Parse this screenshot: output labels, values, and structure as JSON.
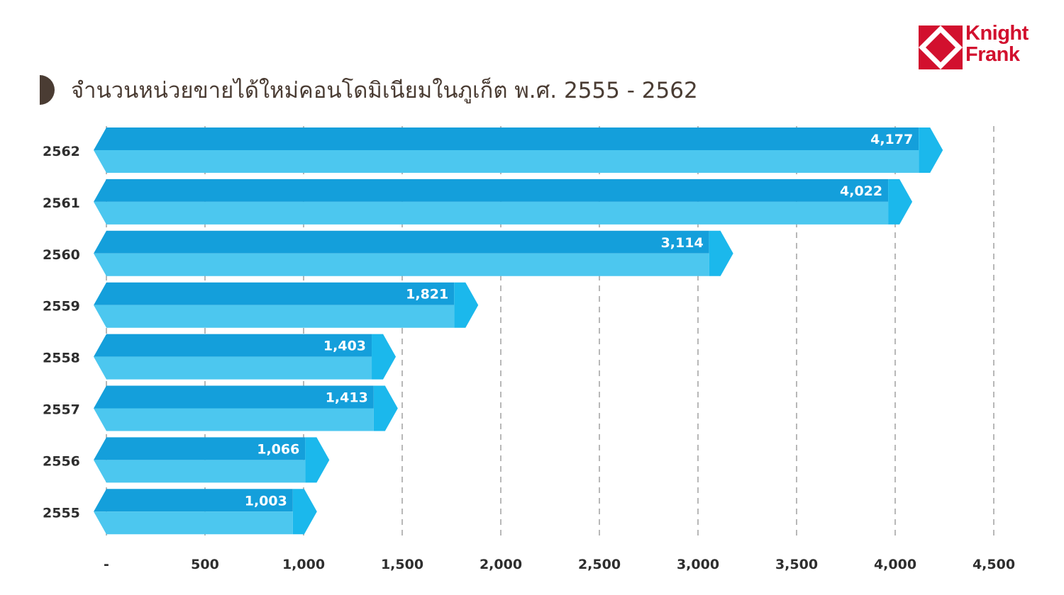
{
  "title": "จำนวนหน่วยขายได้ใหม่คอนโดมิเนียมในภูเก็ต พ.ศ. 2555 - 2562",
  "logo": {
    "line1": "Knight",
    "line2": "Frank",
    "color": "#d2102e"
  },
  "colors": {
    "bar_top": "#149fdb",
    "bar_bottom": "#4cc7ef",
    "bar_tip": "#1bb8ec",
    "title_mark": "#4a3c33",
    "grid": "#9a9a9a"
  },
  "chart_data": {
    "type": "bar",
    "orientation": "horizontal",
    "title": "จำนวนหน่วยขายได้ใหม่คอนโดมิเนียมในภูเก็ต พ.ศ. 2555 - 2562",
    "categories": [
      "2562",
      "2561",
      "2560",
      "2559",
      "2558",
      "2557",
      "2556",
      "2555"
    ],
    "values": [
      4177,
      4022,
      3114,
      1821,
      1403,
      1413,
      1066,
      1003
    ],
    "value_labels": [
      "4,177",
      "4,022",
      "3,114",
      "1,821",
      "1,403",
      "1,413",
      "1,066",
      "1,003"
    ],
    "xlim": [
      0,
      4500
    ],
    "x_ticks": [
      0,
      500,
      1000,
      1500,
      2000,
      2500,
      3000,
      3500,
      4000,
      4500
    ],
    "x_tick_labels": [
      "-",
      "500",
      "1,000",
      "1,500",
      "2,000",
      "2,500",
      "3,000",
      "3,500",
      "4,000",
      "4,500"
    ],
    "grid": "vertical-dashed",
    "legend": "none"
  }
}
